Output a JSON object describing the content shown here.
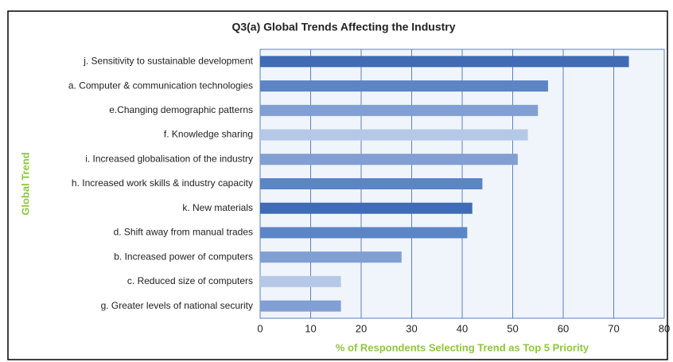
{
  "chart_data": {
    "type": "bar",
    "orientation": "horizontal",
    "title": "Q3(a) Global Trends Affecting the Industry",
    "xlabel": "% of Respondents Selecting Trend as Top 5 Priority",
    "ylabel": "Global Trend",
    "categories": [
      "j. Sensitivity to sustainable development",
      "a. Computer & communication technologies",
      "e.Changing demographic patterns",
      "f. Knowledge sharing",
      "i. Increased globalisation of the industry",
      "h. Increased work skills & industry capacity",
      "k. New materials",
      "d. Shift away from manual trades",
      "b. Increased power of computers",
      "c. Reduced size of computers",
      "g. Greater levels of national security"
    ],
    "values": [
      73,
      57,
      55,
      53,
      51,
      44,
      42,
      41,
      28,
      16,
      16
    ],
    "colors": [
      "#3f6cb4",
      "#5b85c4",
      "#819fd3",
      "#b6c8e7",
      "#819fd3",
      "#5b85c4",
      "#3f6cb4",
      "#5b85c4",
      "#819fd3",
      "#b6c8e7",
      "#819fd3"
    ],
    "xlim": [
      0,
      80
    ],
    "xticks": [
      0,
      10,
      20,
      30,
      40,
      50,
      60,
      70,
      80
    ],
    "grid": true
  }
}
